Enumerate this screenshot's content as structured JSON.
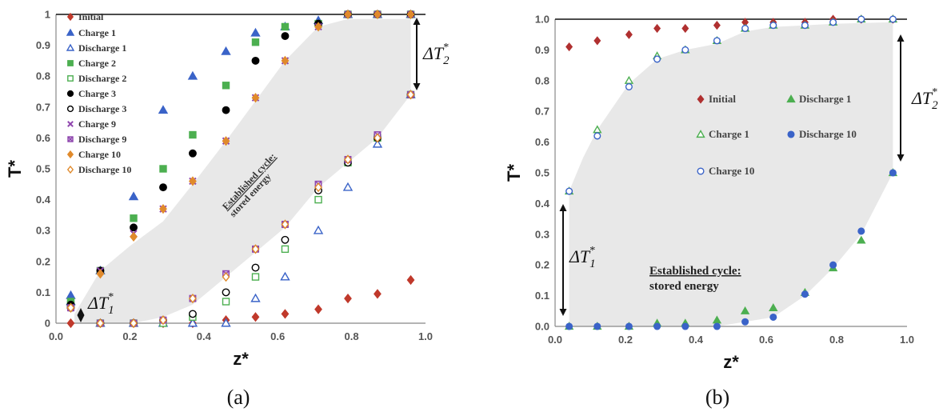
{
  "chart_data": [
    {
      "type": "scatter",
      "panel_label": "(a)",
      "xlabel": "z*",
      "ylabel": "T*",
      "xlim": [
        0,
        1.0
      ],
      "ylim": [
        0,
        1
      ],
      "xticks": [
        "0.0",
        "0.2",
        "0.4",
        "0.6",
        "0.8",
        "1.0"
      ],
      "yticks": [
        "0",
        "0.1",
        "0.2",
        "0.3",
        "0.4",
        "0.5",
        "0.6",
        "0.7",
        "0.8",
        "0.9",
        "1"
      ],
      "grid": false,
      "legend_position": "top-left",
      "annotations": {
        "region_line1": "Established cycle:",
        "region_line2": "stored energy",
        "delta1": "ΔT",
        "delta1_sub": "1",
        "delta2": "ΔT",
        "delta2_sub": "2"
      },
      "x": [
        0.04,
        0.12,
        0.21,
        0.29,
        0.37,
        0.46,
        0.54,
        0.62,
        0.71,
        0.79,
        0.87,
        0.96
      ],
      "series": [
        {
          "name": "Initial",
          "marker": "diamond-filled",
          "color": "#c0392b",
          "values": [
            0.0,
            0.0,
            0.0,
            0.0,
            0.0,
            0.01,
            0.02,
            0.03,
            0.045,
            0.08,
            0.095,
            0.14
          ]
        },
        {
          "name": "Charge 1",
          "marker": "triangle-filled",
          "color": "#3a63c8",
          "values": [
            0.09,
            0.17,
            0.41,
            0.69,
            0.8,
            0.88,
            0.94,
            0.96,
            0.98,
            1.0,
            1.0,
            1.0
          ]
        },
        {
          "name": "Discharge 1",
          "marker": "triangle-open",
          "color": "#3a63c8",
          "values": [
            0.07,
            0.0,
            0.0,
            0.0,
            0.0,
            0.0,
            0.08,
            0.15,
            0.3,
            0.44,
            0.58,
            0.74
          ]
        },
        {
          "name": "Charge 2",
          "marker": "square-filled",
          "color": "#4caf50",
          "values": [
            0.07,
            0.17,
            0.34,
            0.5,
            0.61,
            0.77,
            0.91,
            0.96,
            0.97,
            1.0,
            1.0,
            1.0
          ]
        },
        {
          "name": "Discharge 2",
          "marker": "square-open",
          "color": "#4caf50",
          "values": [
            0.06,
            0.0,
            0.0,
            0.0,
            0.02,
            0.07,
            0.15,
            0.24,
            0.4,
            0.52,
            0.6,
            0.74
          ]
        },
        {
          "name": "Charge 3",
          "marker": "circle-filled",
          "color": "#000000",
          "values": [
            0.06,
            0.17,
            0.31,
            0.44,
            0.55,
            0.69,
            0.85,
            0.93,
            0.97,
            1.0,
            1.0,
            1.0
          ]
        },
        {
          "name": "Discharge 3",
          "marker": "circle-open",
          "color": "#000000",
          "values": [
            0.05,
            0.0,
            0.0,
            0.01,
            0.03,
            0.1,
            0.18,
            0.27,
            0.43,
            0.52,
            0.6,
            0.74
          ]
        },
        {
          "name": "Charge 9",
          "marker": "x",
          "color": "#8e44ad",
          "values": [
            0.05,
            0.17,
            0.29,
            0.37,
            0.46,
            0.59,
            0.73,
            0.85,
            0.96,
            1.0,
            1.0,
            1.0
          ]
        },
        {
          "name": "Discharge 9",
          "marker": "square-x",
          "color": "#8e44ad",
          "values": [
            0.05,
            0.0,
            0.0,
            0.01,
            0.08,
            0.16,
            0.24,
            0.32,
            0.45,
            0.53,
            0.61,
            0.74
          ]
        },
        {
          "name": "Charge 10",
          "marker": "diamond-filled",
          "color": "#e08a2c",
          "values": [
            0.05,
            0.16,
            0.28,
            0.37,
            0.46,
            0.59,
            0.73,
            0.85,
            0.96,
            1.0,
            1.0,
            1.0
          ]
        },
        {
          "name": "Discharge 10",
          "marker": "diamond-open",
          "color": "#e08a2c",
          "values": [
            0.05,
            0.0,
            0.0,
            0.01,
            0.08,
            0.15,
            0.24,
            0.32,
            0.44,
            0.53,
            0.6,
            0.74
          ]
        }
      ]
    },
    {
      "type": "scatter",
      "panel_label": "(b)",
      "xlabel": "z*",
      "ylabel": "T*",
      "xlim": [
        0,
        1.0
      ],
      "ylim": [
        0,
        1.0
      ],
      "xticks": [
        "0.0",
        "0.2",
        "0.4",
        "0.6",
        "0.8",
        "1.0"
      ],
      "yticks": [
        "0.0",
        "0.1",
        "0.2",
        "0.3",
        "0.4",
        "0.5",
        "0.6",
        "0.7",
        "0.8",
        "0.9",
        "1.0"
      ],
      "grid": false,
      "legend_position": "center",
      "annotations": {
        "region_line1": "Established cycle:",
        "region_line2": "stored energy",
        "delta1": "ΔT",
        "delta1_sub": "1",
        "delta2": "ΔT",
        "delta2_sub": "2"
      },
      "x": [
        0.04,
        0.12,
        0.21,
        0.29,
        0.37,
        0.46,
        0.54,
        0.62,
        0.71,
        0.79,
        0.87,
        0.96
      ],
      "series": [
        {
          "name": "Initial",
          "marker": "diamond-filled",
          "color": "#b03030",
          "values": [
            0.91,
            0.93,
            0.95,
            0.97,
            0.97,
            0.98,
            0.99,
            0.99,
            0.99,
            1.0,
            1.0,
            1.0
          ]
        },
        {
          "name": "Charge 1",
          "marker": "triangle-open",
          "color": "#4caf50",
          "values": [
            0.44,
            0.64,
            0.8,
            0.88,
            0.9,
            0.93,
            0.97,
            0.98,
            0.98,
            0.99,
            1.0,
            1.0
          ]
        },
        {
          "name": "Charge 10",
          "marker": "circle-open",
          "color": "#3a63c8",
          "values": [
            0.44,
            0.62,
            0.78,
            0.87,
            0.9,
            0.93,
            0.97,
            0.98,
            0.98,
            0.99,
            1.0,
            1.0
          ]
        },
        {
          "name": "Discharge 1",
          "marker": "triangle-filled",
          "color": "#4caf50",
          "values": [
            0.0,
            0.0,
            0.0,
            0.01,
            0.01,
            0.02,
            0.05,
            0.06,
            0.11,
            0.19,
            0.28,
            0.5
          ]
        },
        {
          "name": "Discharge 10",
          "marker": "circle-filled",
          "color": "#3a63c8",
          "values": [
            0.0,
            0.0,
            0.0,
            0.0,
            0.0,
            0.0,
            0.015,
            0.03,
            0.105,
            0.2,
            0.31,
            0.5
          ]
        }
      ]
    }
  ]
}
